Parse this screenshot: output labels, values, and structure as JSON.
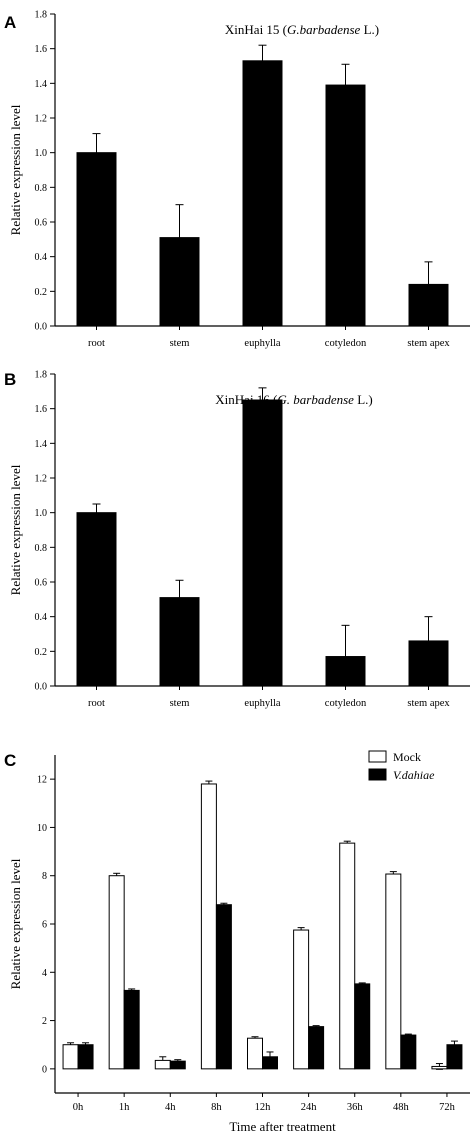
{
  "chart_data": [
    {
      "type": "bar",
      "panel_label": "A",
      "title": "XinHai 15 (",
      "title_italic": "G.barbadense",
      "title_suffix": " L.)",
      "ylabel": "Relative expression level",
      "xlabel": "",
      "categories": [
        "root",
        "stem",
        "euphylla",
        "cotyledon",
        "stem apex"
      ],
      "series": [
        {
          "values": [
            1.0,
            0.51,
            1.53,
            1.39,
            0.24
          ],
          "errors": [
            0.11,
            0.19,
            0.09,
            0.12,
            0.13
          ],
          "color": "#000000"
        }
      ],
      "ylim": [
        0,
        1.8
      ],
      "yticks": [
        "0.0",
        "0.2",
        "0.4",
        "0.6",
        "0.8",
        "1.0",
        "1.2",
        "1.4",
        "1.6",
        "1.8"
      ]
    },
    {
      "type": "bar",
      "panel_label": "B",
      "title": "XinHai 16 (",
      "title_italic": "G. barbadense",
      "title_suffix": " L.)",
      "ylabel": "Relative expression level",
      "xlabel": "",
      "categories": [
        "root",
        "stem",
        "euphylla",
        "cotyledon",
        "stem apex"
      ],
      "series": [
        {
          "values": [
            1.0,
            0.51,
            1.65,
            0.17,
            0.26
          ],
          "errors": [
            0.05,
            0.1,
            0.07,
            0.18,
            0.14
          ],
          "color": "#000000"
        }
      ],
      "ylim": [
        0,
        1.8
      ],
      "yticks": [
        "0.0",
        "0.2",
        "0.4",
        "0.6",
        "0.8",
        "1.0",
        "1.2",
        "1.4",
        "1.6",
        "1.8"
      ]
    },
    {
      "type": "bar",
      "panel_label": "C",
      "ylabel": "Relative expression level",
      "xlabel": "Time after treatment",
      "categories": [
        "0h",
        "1h",
        "4h",
        "8h",
        "12h",
        "24h",
        "36h",
        "48h",
        "72h"
      ],
      "series": [
        {
          "name": "Mock",
          "italic": false,
          "color": "#ffffff",
          "values": [
            1.0,
            8.0,
            0.35,
            11.8,
            1.27,
            5.75,
            9.35,
            8.07,
            0.1
          ],
          "errors": [
            0.08,
            0.1,
            0.15,
            0.12,
            0.06,
            0.1,
            0.08,
            0.1,
            0.12
          ]
        },
        {
          "name": "V.dahiae",
          "italic": true,
          "color": "#000000",
          "values": [
            1.0,
            3.25,
            0.32,
            6.8,
            0.5,
            1.75,
            3.52,
            1.4,
            1.0
          ],
          "errors": [
            0.08,
            0.06,
            0.06,
            0.06,
            0.2,
            0.04,
            0.04,
            0.04,
            0.15
          ]
        }
      ],
      "ylim": [
        -1,
        13
      ],
      "yticks": [
        "0",
        "2",
        "4",
        "6",
        "8",
        "10",
        "12"
      ],
      "legend_position": "top-right"
    }
  ]
}
